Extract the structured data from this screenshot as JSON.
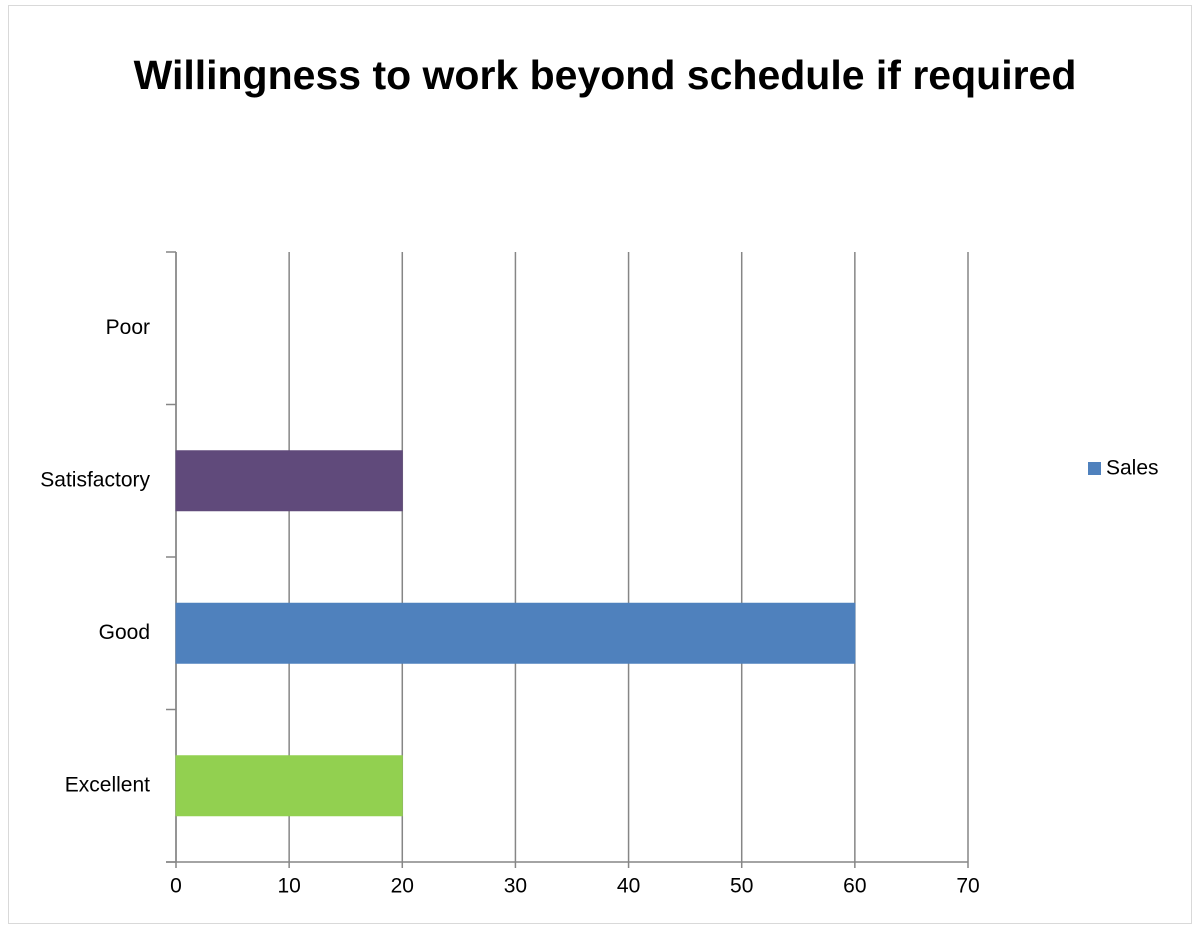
{
  "chart_data": {
    "type": "hbar",
    "title": "Willingness to work beyond schedule if required",
    "categories": [
      "Excellent",
      "Good",
      "Satisfactory",
      "Poor"
    ],
    "series": [
      {
        "name": "Sales",
        "color": "#4f81bd",
        "values": [
          20,
          60,
          20,
          0
        ],
        "point_colors": [
          "#92d050",
          "#4f81bd",
          "#604a7b",
          "#c0504d"
        ]
      }
    ],
    "xlim": [
      0,
      70
    ],
    "xticks": [
      0,
      10,
      20,
      30,
      40,
      50,
      60,
      70
    ],
    "grid": true,
    "legend": "right"
  }
}
